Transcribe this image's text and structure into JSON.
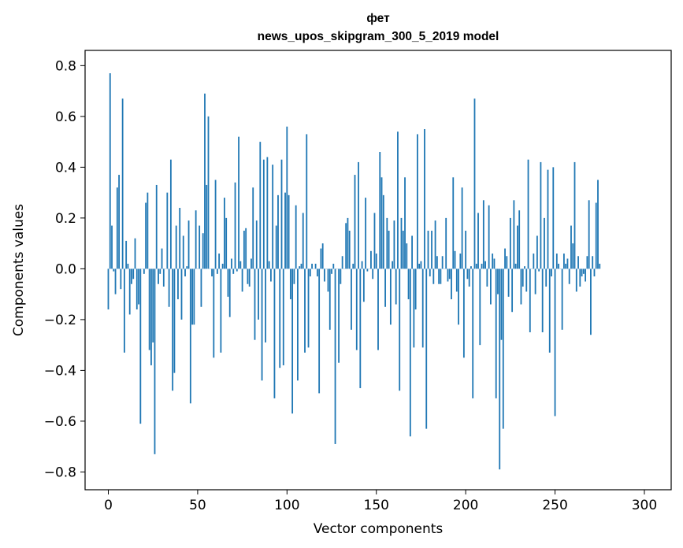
{
  "chart_data": {
    "type": "bar",
    "title": "фет",
    "subtitle": "news_upos_skipgram_300_5_2019 model",
    "xlabel": "Vector components",
    "ylabel": "Components values",
    "xlim": [
      -13,
      315
    ],
    "ylim": [
      -0.87,
      0.86
    ],
    "x_ticks": [
      0,
      50,
      100,
      150,
      200,
      250,
      300
    ],
    "x_tick_labels": [
      "0",
      "50",
      "100",
      "150",
      "200",
      "250",
      "300"
    ],
    "y_ticks": [
      -0.8,
      -0.6,
      -0.4,
      -0.2,
      0.0,
      0.2,
      0.4,
      0.6,
      0.8
    ],
    "y_tick_labels": [
      "−0.8",
      "−0.6",
      "−0.4",
      "−0.2",
      "0.0",
      "0.2",
      "0.4",
      "0.6",
      "0.8"
    ],
    "bar_color": "#1f77b4",
    "grid": false,
    "values": [
      -0.16,
      0.77,
      0.17,
      -0.01,
      -0.1,
      0.32,
      0.37,
      -0.08,
      0.67,
      -0.33,
      0.11,
      0.02,
      -0.18,
      -0.06,
      -0.04,
      0.12,
      -0.16,
      -0.14,
      -0.61,
      0.0,
      -0.02,
      0.26,
      0.3,
      -0.32,
      -0.38,
      -0.29,
      -0.73,
      0.33,
      -0.06,
      -0.02,
      0.08,
      -0.07,
      0.0,
      0.3,
      -0.15,
      0.43,
      -0.48,
      -0.41,
      0.17,
      -0.12,
      0.24,
      -0.2,
      0.13,
      -0.03,
      0.01,
      0.19,
      -0.53,
      -0.22,
      -0.22,
      0.23,
      0.0,
      0.17,
      -0.15,
      0.14,
      0.69,
      0.33,
      0.6,
      0.0,
      -0.03,
      -0.35,
      0.35,
      -0.02,
      0.06,
      -0.33,
      0.02,
      0.28,
      0.2,
      -0.11,
      -0.19,
      0.04,
      -0.02,
      0.34,
      -0.01,
      0.52,
      0.03,
      -0.09,
      0.15,
      0.16,
      -0.06,
      -0.07,
      0.04,
      0.32,
      -0.28,
      0.19,
      -0.2,
      0.5,
      -0.44,
      0.43,
      -0.29,
      0.44,
      0.03,
      -0.05,
      0.41,
      -0.51,
      0.17,
      0.29,
      -0.39,
      0.43,
      -0.38,
      0.3,
      0.56,
      0.29,
      -0.12,
      -0.57,
      -0.06,
      0.25,
      -0.44,
      0.01,
      0.02,
      0.22,
      -0.33,
      0.53,
      -0.31,
      -0.03,
      0.02,
      0.0,
      0.02,
      -0.03,
      -0.49,
      0.08,
      0.1,
      -0.05,
      0.0,
      -0.09,
      -0.24,
      -0.02,
      0.02,
      -0.69,
      0.0,
      -0.37,
      -0.06,
      0.05,
      0.0,
      0.18,
      0.2,
      0.15,
      -0.24,
      0.02,
      0.37,
      -0.32,
      0.42,
      -0.47,
      0.03,
      -0.13,
      0.28,
      -0.01,
      0.0,
      0.07,
      -0.04,
      0.22,
      0.06,
      -0.32,
      0.46,
      0.36,
      0.29,
      -0.15,
      0.2,
      0.15,
      -0.22,
      0.03,
      0.19,
      -0.14,
      0.54,
      -0.48,
      0.2,
      0.15,
      0.36,
      0.1,
      -0.12,
      -0.66,
      0.13,
      -0.31,
      -0.16,
      0.53,
      0.02,
      0.03,
      -0.31,
      0.55,
      -0.63,
      0.15,
      -0.03,
      0.15,
      -0.06,
      0.19,
      0.05,
      -0.06,
      -0.06,
      0.05,
      0.0,
      0.2,
      -0.05,
      -0.04,
      -0.12,
      0.36,
      0.07,
      -0.09,
      -0.22,
      0.06,
      0.32,
      -0.35,
      0.15,
      -0.04,
      -0.07,
      0.01,
      -0.51,
      0.67,
      0.02,
      0.22,
      -0.3,
      0.02,
      0.27,
      0.03,
      -0.07,
      0.25,
      -0.14,
      0.06,
      0.04,
      -0.51,
      -0.1,
      -0.79,
      -0.28,
      -0.63,
      0.08,
      0.05,
      -0.11,
      0.2,
      -0.17,
      0.27,
      0.02,
      0.17,
      0.23,
      -0.14,
      -0.07,
      0.01,
      -0.09,
      0.43,
      -0.25,
      0.0,
      0.06,
      -0.1,
      0.13,
      -0.01,
      0.42,
      -0.25,
      0.2,
      -0.07,
      0.39,
      -0.33,
      -0.03,
      0.4,
      -0.58,
      0.06,
      0.02,
      0.0,
      -0.24,
      0.06,
      0.02,
      0.04,
      -0.06,
      0.17,
      0.1,
      0.42,
      -0.09,
      0.05,
      -0.07,
      -0.03,
      -0.02,
      -0.05,
      0.05,
      0.27,
      -0.26,
      0.05,
      -0.03,
      0.26,
      0.35,
      0.02
    ]
  }
}
